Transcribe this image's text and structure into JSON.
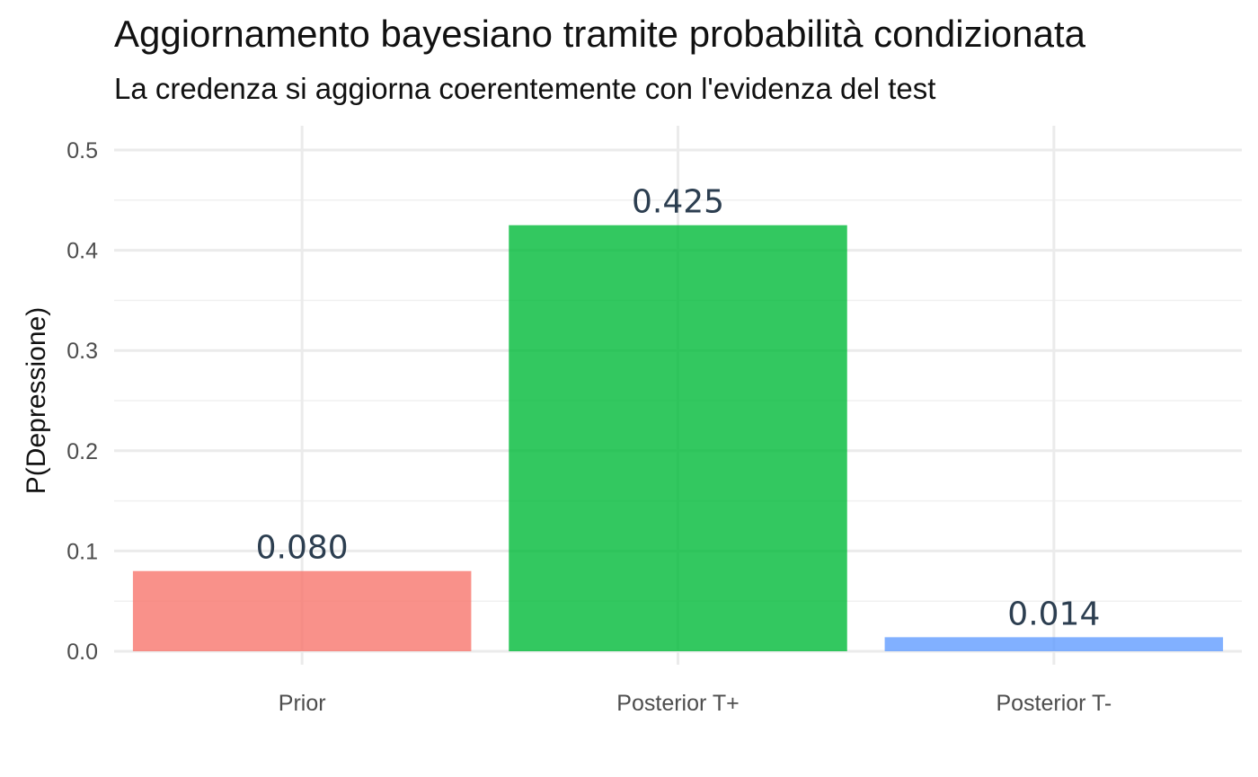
{
  "chart_data": {
    "type": "bar",
    "title": "Aggiornamento bayesiano tramite probabilità condizionata",
    "subtitle": "La credenza si aggiorna coerentemente con l'evidenza del test",
    "xlabel": "",
    "ylabel": "P(Depressione)",
    "categories": [
      "Prior",
      "Posterior T+",
      "Posterior T-"
    ],
    "values": [
      0.08,
      0.425,
      0.014
    ],
    "data_labels": [
      "0.080",
      "0.425",
      "0.014"
    ],
    "colors": [
      "#f8766d",
      "#00ba38",
      "#619cff"
    ],
    "ylim": [
      0,
      0.5
    ],
    "yticks": [
      0.0,
      0.1,
      0.2,
      0.3,
      0.4,
      0.5
    ],
    "ytick_labels": [
      "0.0",
      "0.1",
      "0.2",
      "0.3",
      "0.4",
      "0.5"
    ],
    "grid": true,
    "legend": "none"
  }
}
